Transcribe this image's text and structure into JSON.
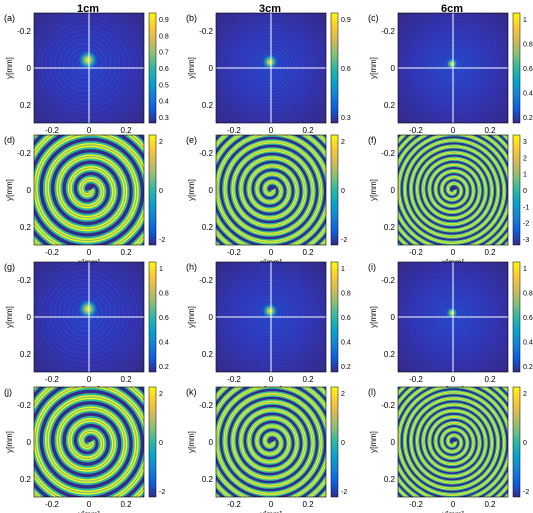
{
  "column_titles": [
    "1cm",
    "3cm",
    "6cm"
  ],
  "panel_labels": [
    "(a)",
    "(b)",
    "(c)",
    "(d)",
    "(e)",
    "(f)",
    "(g)",
    "(h)",
    "(i)",
    "(j)",
    "(k)",
    "(l)"
  ],
  "xlabel": "x[mm]",
  "ylabel": "y[mm]",
  "colors": {
    "parula": [
      "#352a87",
      "#0f5cdd",
      "#1481d6",
      "#06a4ca",
      "#2eb7a4",
      "#87bf77",
      "#d1bb59",
      "#fec832",
      "#f9fb0e"
    ],
    "crosshair": "#ffffff",
    "axis": "#000000"
  },
  "panels": [
    {
      "id": "a",
      "kind": "intensity",
      "xticks": [
        "-0.2",
        "0",
        "0.2"
      ],
      "yticks": [
        "-0.2",
        "0",
        "0.2"
      ],
      "cticks": [
        "0.3",
        "0.4",
        "0.5",
        "0.6",
        "0.7",
        "0.8",
        "0.9"
      ]
    },
    {
      "id": "b",
      "kind": "intensity",
      "xticks": [
        "-0.2",
        "0",
        "0.2"
      ],
      "yticks": [
        "-0.2",
        "0",
        "0.2"
      ],
      "cticks": [
        "0.3",
        "0.6",
        "0.9"
      ]
    },
    {
      "id": "c",
      "kind": "intensity",
      "xticks": [
        "-0.2",
        "0",
        "0.2"
      ],
      "yticks": [
        "-0.2",
        "0",
        "0.2"
      ],
      "cticks": [
        "0.2",
        "0.4",
        "0.6",
        "0.8",
        "1"
      ]
    },
    {
      "id": "d",
      "kind": "phase",
      "xticks": [
        "-0.2",
        "0",
        "0.2"
      ],
      "yticks": [
        "-0.2",
        "0",
        "0.2"
      ],
      "cticks": [
        "-2",
        "0",
        "2"
      ]
    },
    {
      "id": "e",
      "kind": "phase",
      "xticks": [
        "-0.2",
        "0",
        "0.2"
      ],
      "yticks": [
        "-0.2",
        "0",
        "0.2"
      ],
      "cticks": [
        "-2",
        "0",
        "2"
      ]
    },
    {
      "id": "f",
      "kind": "phase",
      "xticks": [
        "-0.2",
        "0",
        "0.2"
      ],
      "yticks": [
        "-0.2",
        "0",
        "0.2"
      ],
      "cticks": [
        "-3",
        "-2",
        "-1",
        "0",
        "1",
        "2",
        "3"
      ]
    },
    {
      "id": "g",
      "kind": "intensity",
      "xticks": [
        "-0.2",
        "0",
        "0.2"
      ],
      "yticks": [
        "-0.2",
        "0",
        "0.2"
      ],
      "cticks": [
        "0.2",
        "0.4",
        "0.6",
        "0.8",
        "1"
      ]
    },
    {
      "id": "h",
      "kind": "intensity",
      "xticks": [
        "-0.2",
        "0",
        "0.2"
      ],
      "yticks": [
        "-0.2",
        "0",
        "0.2"
      ],
      "cticks": [
        "0.2",
        "0.4",
        "0.6",
        "0.8",
        "1"
      ]
    },
    {
      "id": "i",
      "kind": "intensity",
      "xticks": [
        "-0.2",
        "0",
        "0.2"
      ],
      "yticks": [
        "-0.2",
        "0",
        "0.2"
      ],
      "cticks": [
        "0.2",
        "0.4",
        "0.6",
        "0.8",
        "1"
      ]
    },
    {
      "id": "j",
      "kind": "phase",
      "xticks": [
        "-0.2",
        "0",
        "0.2"
      ],
      "yticks": [
        "-0.2",
        "0",
        "0.2"
      ],
      "cticks": [
        "-2",
        "0",
        "2"
      ]
    },
    {
      "id": "k",
      "kind": "phase",
      "xticks": [
        "-0.2",
        "0",
        "0.2"
      ],
      "yticks": [
        "-0.2",
        "0",
        "0.2"
      ],
      "cticks": [
        "-2",
        "0",
        "2"
      ]
    },
    {
      "id": "l",
      "kind": "phase",
      "xticks": [
        "-0.2",
        "0",
        "0.2"
      ],
      "yticks": [
        "-0.2",
        "0",
        "0.2"
      ],
      "cticks": [
        "-2",
        "0",
        "2"
      ]
    }
  ]
}
